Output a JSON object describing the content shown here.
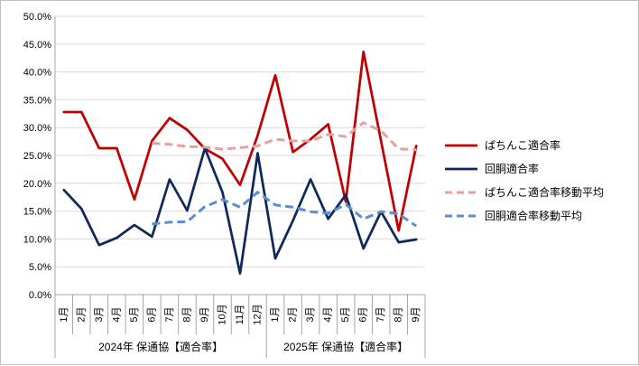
{
  "chart_data": {
    "type": "line",
    "title": "",
    "xlabel": "",
    "ylabel": "",
    "ylim": [
      0,
      0.5
    ],
    "yticks": [
      0,
      0.05,
      0.1,
      0.15,
      0.2,
      0.25,
      0.3,
      0.35,
      0.4,
      0.45,
      0.5
    ],
    "ytick_labels": [
      "0.0%",
      "5.0%",
      "10.0%",
      "15.0%",
      "20.0%",
      "25.0%",
      "30.0%",
      "35.0%",
      "40.0%",
      "45.0%",
      "50.0%"
    ],
    "grid": true,
    "legend_position": "right",
    "categories": [
      "1月",
      "2月",
      "3月",
      "4月",
      "5月",
      "6月",
      "7月",
      "8月",
      "9月",
      "10月",
      "11月",
      "12月",
      "1月",
      "2月",
      "3月",
      "4月",
      "5月",
      "6月",
      "7月",
      "8月",
      "9月"
    ],
    "category_groups": [
      {
        "label": "2024年 保通協【適合率】",
        "count": 12
      },
      {
        "label": "2025年 保通協【適合率】",
        "count": 9
      }
    ],
    "series": [
      {
        "name": "ぱちんこ適合率",
        "color": "#c00000",
        "style": "solid",
        "values": [
          0.328,
          0.328,
          0.263,
          0.263,
          0.171,
          0.276,
          0.317,
          0.296,
          0.262,
          0.244,
          0.197,
          0.286,
          0.394,
          0.256,
          0.279,
          0.306,
          0.167,
          0.436,
          0.276,
          0.115,
          0.267
        ]
      },
      {
        "name": "回胴適合率",
        "color": "#0e2a5c",
        "style": "solid",
        "values": [
          0.188,
          0.154,
          0.089,
          0.102,
          0.125,
          0.104,
          0.207,
          0.151,
          0.263,
          0.184,
          0.038,
          0.254,
          0.065,
          0.133,
          0.207,
          0.136,
          0.179,
          0.083,
          0.149,
          0.094,
          0.099
        ]
      },
      {
        "name": "ぱちんこ適合率移動平均",
        "color": "#e6a0a0",
        "style": "dashed",
        "values": [
          null,
          null,
          null,
          null,
          null,
          0.272,
          0.27,
          0.266,
          0.265,
          0.261,
          0.264,
          0.267,
          0.279,
          0.276,
          0.276,
          0.288,
          0.284,
          0.309,
          0.294,
          0.262,
          0.26
        ]
      },
      {
        "name": "回胴適合率移動平均",
        "color": "#5b8fd0",
        "style": "dashed",
        "values": [
          null,
          null,
          null,
          null,
          null,
          0.127,
          0.13,
          0.131,
          0.158,
          0.171,
          0.157,
          0.184,
          0.161,
          0.157,
          0.149,
          0.146,
          0.162,
          0.136,
          0.149,
          0.145,
          0.123
        ]
      }
    ]
  }
}
